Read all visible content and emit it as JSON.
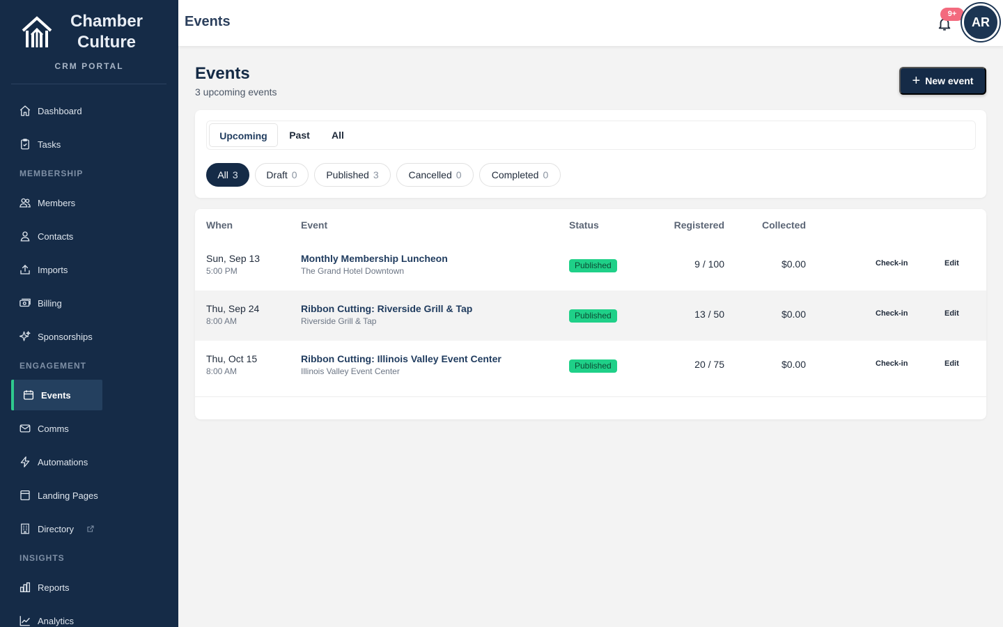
{
  "brand": {
    "name_line1": "Chamber",
    "name_line2": "Culture",
    "subtitle": "CRM PORTAL"
  },
  "sidebar": {
    "items": [
      {
        "label": "Dashboard",
        "icon": "home-icon"
      },
      {
        "label": "Tasks",
        "icon": "clipboard-icon"
      },
      {
        "label": "Members",
        "icon": "users-icon"
      },
      {
        "label": "Contacts",
        "icon": "user-icon"
      },
      {
        "label": "Imports",
        "icon": "upload-icon"
      },
      {
        "label": "Billing",
        "icon": "cash-icon"
      },
      {
        "label": "Sponsorships",
        "icon": "sparkles-icon"
      },
      {
        "label": "Events",
        "icon": "calendar-icon",
        "active": true
      },
      {
        "label": "Comms",
        "icon": "mail-icon"
      },
      {
        "label": "Automations",
        "icon": "bolt-icon"
      },
      {
        "label": "Landing Pages",
        "icon": "window-icon"
      },
      {
        "label": "Directory",
        "icon": "building-icon",
        "external": true
      },
      {
        "label": "Reports",
        "icon": "bar-chart-icon"
      },
      {
        "label": "Analytics",
        "icon": "line-chart-icon"
      }
    ],
    "sections": {
      "membership": "MEMBERSHIP",
      "engagement": "ENGAGEMENT",
      "insights": "INSIGHTS"
    }
  },
  "header": {
    "title": "Events",
    "notification_badge": "9+",
    "avatar_initials": "AR"
  },
  "page": {
    "title": "Events",
    "subtitle": "3 upcoming events",
    "new_button": "New event"
  },
  "tabs": [
    {
      "label": "Upcoming",
      "active": true
    },
    {
      "label": "Past"
    },
    {
      "label": "All"
    }
  ],
  "status_filters": [
    {
      "label": "All",
      "count": "3",
      "active": true
    },
    {
      "label": "Draft",
      "count": "0"
    },
    {
      "label": "Published",
      "count": "3"
    },
    {
      "label": "Cancelled",
      "count": "0"
    },
    {
      "label": "Completed",
      "count": "0"
    }
  ],
  "table": {
    "columns": {
      "when": "When",
      "event": "Event",
      "status": "Status",
      "registered": "Registered",
      "collected": "Collected"
    },
    "rows": [
      {
        "date": "Sun, Sep 13",
        "time": "5:00 PM",
        "event": "Monthly Membership Luncheon",
        "location": "The Grand Hotel Downtown",
        "status": "Published",
        "registered": "9 / 100",
        "collected": "$0.00",
        "checkin": "Check-in",
        "edit": "Edit"
      },
      {
        "date": "Thu, Sep 24",
        "time": "8:00 AM",
        "event": "Ribbon Cutting: Riverside Grill & Tap",
        "location": "Riverside Grill & Tap",
        "status": "Published",
        "registered": "13 / 50",
        "collected": "$0.00",
        "checkin": "Check-in",
        "edit": "Edit"
      },
      {
        "date": "Thu, Oct 15",
        "time": "8:00 AM",
        "event": "Ribbon Cutting: Illinois Valley Event Center",
        "location": "Illinois Valley Event Center",
        "status": "Published",
        "registered": "20 / 75",
        "collected": "$0.00",
        "checkin": "Check-in",
        "edit": "Edit"
      }
    ]
  },
  "colors": {
    "sidebar": "#152b47",
    "accent": "#2fca8e",
    "status_published": "#1fd088",
    "badge": "#f36a7e"
  }
}
